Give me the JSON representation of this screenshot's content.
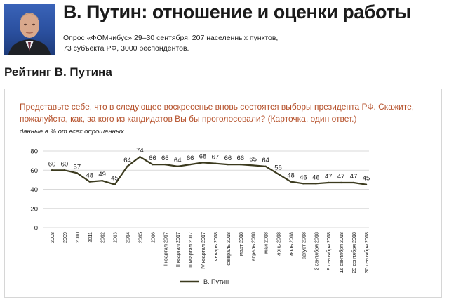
{
  "header": {
    "title": "В. Путин: отношение и оценки работы",
    "subtitle_line1": "Опрос «ФОМнибус» 29–30 сентября. 207 населенных пунктов,",
    "subtitle_line2": "73 субъекта РФ, 3000 респондентов."
  },
  "section_title": "Рейтинг В. Путина",
  "question": "Представьте себе, что в следующее воскресенье вновь состоятся выборы президента РФ. Скажите, пожалуйста, как, за кого из кандидатов Вы бы проголосовали?  (Карточка, один ответ.)",
  "units_note": "данные в % от всех опрошенных",
  "colors": {
    "line": "#3b3a1e",
    "question": "#b5502a",
    "grid": "#d9d9d9"
  },
  "chart_data": {
    "type": "line",
    "title": "",
    "xlabel": "",
    "ylabel": "",
    "ylim": [
      0,
      80
    ],
    "yticks": [
      0,
      20,
      40,
      60,
      80
    ],
    "grid": true,
    "legend_position": "bottom-center",
    "categories": [
      "2008",
      "2009",
      "2010",
      "2011",
      "2012",
      "2013",
      "2014",
      "2015",
      "2016",
      "I квартал 2017",
      "II квартал 2017",
      "III квартал 2017",
      "IV квартал 2017",
      "январь 2018",
      "февраль 2018",
      "март 2018",
      "апрель 2018",
      "май 2018",
      "июнь 2018",
      "июль 2018",
      "август 2018",
      "2 сентября 2018",
      "9 сентября 2018",
      "16 сентября 2018",
      "23 сентября 2018",
      "30 сентября 2018"
    ],
    "series": [
      {
        "name": "В. Путин",
        "values": [
          60,
          60,
          57,
          48,
          49,
          45,
          64,
          74,
          66,
          66,
          64,
          66,
          68,
          67,
          66,
          66,
          65,
          64,
          56,
          48,
          46,
          46,
          47,
          47,
          47,
          45
        ]
      }
    ]
  }
}
